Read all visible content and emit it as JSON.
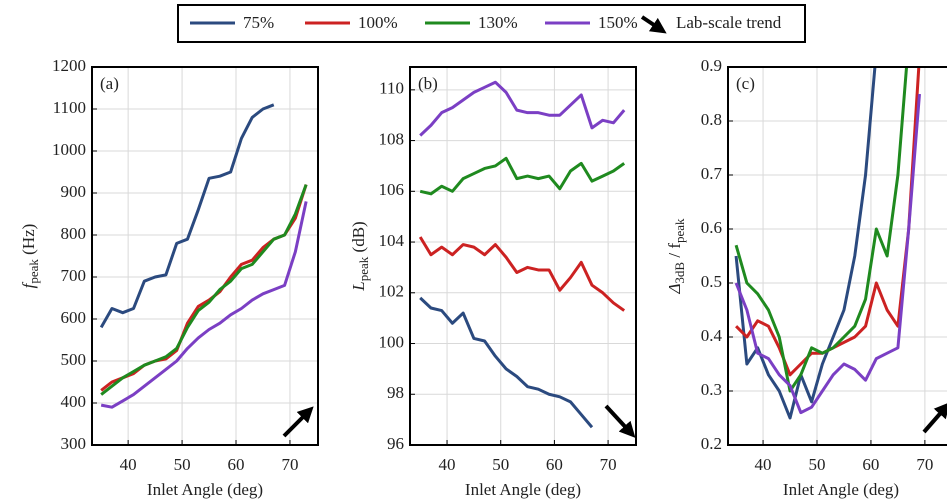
{
  "chart_data": [
    {
      "type": "line",
      "panel": "(a)",
      "xlabel": "Inlet Angle (deg)",
      "ylabel": [
        {
          "text": "f"
        },
        {
          "text": "peak",
          "sub": true
        },
        {
          "text": " (Hz)"
        }
      ],
      "legend_extra": "Lab-scale trend",
      "x": [
        35,
        37,
        39,
        41,
        43,
        45,
        47,
        49,
        51,
        53,
        55,
        57,
        59,
        61,
        63,
        65,
        67,
        69,
        71,
        73
      ],
      "xlim": [
        33.3,
        75.2
      ],
      "xticks": [
        40,
        50,
        60,
        70
      ],
      "ylim": [
        300,
        1200
      ],
      "yticks": [
        300,
        400,
        500,
        600,
        700,
        800,
        900,
        1000,
        1100,
        1200
      ],
      "grid": true,
      "series": [
        {
          "name": "75%",
          "color": "#2b4a7f",
          "values": [
            580,
            625,
            615,
            625,
            690,
            700,
            705,
            780,
            790,
            860,
            935,
            940,
            950,
            1030,
            1080,
            1100,
            1110,
            null,
            null,
            null
          ]
        },
        {
          "name": "100%",
          "color": "#cc2222",
          "values": [
            430,
            450,
            460,
            470,
            490,
            500,
            505,
            525,
            590,
            630,
            645,
            665,
            700,
            730,
            740,
            770,
            790,
            800,
            840,
            920
          ]
        },
        {
          "name": "130%",
          "color": "#1f8a1f",
          "values": [
            420,
            440,
            460,
            475,
            490,
            500,
            510,
            530,
            580,
            620,
            640,
            670,
            690,
            720,
            730,
            760,
            790,
            800,
            850,
            920
          ]
        },
        {
          "name": "150%",
          "color": "#7b3fc4",
          "values": [
            395,
            390,
            405,
            420,
            440,
            460,
            480,
            500,
            530,
            555,
            575,
            590,
            610,
            625,
            645,
            660,
            670,
            680,
            760,
            880
          ]
        }
      ]
    },
    {
      "type": "line",
      "panel": "(b)",
      "xlabel": "Inlet Angle (deg)",
      "ylabel": [
        {
          "text": "L"
        },
        {
          "text": "peak",
          "sub": true
        },
        {
          "text": " (dB)"
        }
      ],
      "x": [
        35,
        37,
        39,
        41,
        43,
        45,
        47,
        49,
        51,
        53,
        55,
        57,
        59,
        61,
        63,
        65,
        67,
        69,
        71,
        73
      ],
      "xlim": [
        33.1,
        75.2
      ],
      "xticks": [
        40,
        50,
        60,
        70
      ],
      "ylim": [
        96,
        110.9
      ],
      "yticks": [
        96,
        98,
        100,
        102,
        104,
        106,
        108,
        110
      ],
      "grid": true,
      "series": [
        {
          "name": "75%",
          "color": "#2b4a7f",
          "values": [
            101.8,
            101.4,
            101.3,
            100.8,
            101.2,
            100.2,
            100.1,
            99.5,
            99.0,
            98.7,
            98.3,
            98.2,
            98.0,
            97.9,
            97.7,
            97.2,
            96.7,
            null,
            null,
            null
          ]
        },
        {
          "name": "100%",
          "color": "#cc2222",
          "values": [
            104.2,
            103.5,
            103.8,
            103.5,
            103.9,
            103.8,
            103.5,
            103.9,
            103.4,
            102.8,
            103.0,
            102.9,
            102.9,
            102.1,
            102.6,
            103.2,
            102.3,
            102.0,
            101.6,
            101.3
          ]
        },
        {
          "name": "130%",
          "color": "#1f8a1f",
          "values": [
            106.0,
            105.9,
            106.2,
            106.0,
            106.5,
            106.7,
            106.9,
            107.0,
            107.3,
            106.5,
            106.6,
            106.5,
            106.6,
            106.1,
            106.8,
            107.1,
            106.4,
            106.6,
            106.8,
            107.1
          ]
        },
        {
          "name": "150%",
          "color": "#7b3fc4",
          "values": [
            108.2,
            108.6,
            109.1,
            109.3,
            109.6,
            109.9,
            110.1,
            110.3,
            109.9,
            109.2,
            109.1,
            109.1,
            109.0,
            109.0,
            109.4,
            109.8,
            108.5,
            108.8,
            108.7,
            109.2
          ]
        }
      ]
    },
    {
      "type": "line",
      "panel": "(c)",
      "xlabel": "Inlet Angle (deg)",
      "ylabel": [
        {
          "text": "Δ"
        },
        {
          "text": "3dB",
          "sub": true
        },
        {
          "text": " / f"
        },
        {
          "text": "peak",
          "sub": true
        }
      ],
      "x": [
        35,
        37,
        39,
        41,
        43,
        45,
        47,
        49,
        51,
        53,
        55,
        57,
        59,
        61,
        63,
        65,
        67,
        69,
        71,
        73
      ],
      "xlim": [
        33.5,
        75.4
      ],
      "xticks": [
        40,
        50,
        60,
        70
      ],
      "ylim": [
        0.2,
        0.9
      ],
      "yticks": [
        0.2,
        0.3,
        0.4,
        0.5,
        0.6,
        0.7,
        0.8,
        0.9
      ],
      "grid": true,
      "series": [
        {
          "name": "75%",
          "color": "#2b4a7f",
          "values": [
            0.55,
            0.35,
            0.38,
            0.33,
            0.3,
            0.25,
            0.33,
            0.28,
            0.35,
            0.4,
            0.45,
            0.55,
            0.7,
            0.93,
            null,
            null,
            null,
            null,
            null,
            null
          ]
        },
        {
          "name": "100%",
          "color": "#cc2222",
          "values": [
            0.42,
            0.4,
            0.43,
            0.42,
            0.38,
            0.33,
            0.35,
            0.37,
            0.37,
            0.38,
            0.39,
            0.4,
            0.42,
            0.5,
            0.45,
            0.42,
            0.6,
            0.92,
            null,
            null
          ]
        },
        {
          "name": "130%",
          "color": "#1f8a1f",
          "values": [
            0.57,
            0.5,
            0.48,
            0.45,
            0.4,
            0.3,
            0.33,
            0.38,
            0.37,
            0.38,
            0.4,
            0.42,
            0.47,
            0.6,
            0.55,
            0.7,
            0.95,
            null,
            null,
            null
          ]
        },
        {
          "name": "150%",
          "color": "#7b3fc4",
          "values": [
            0.5,
            0.45,
            0.37,
            0.36,
            0.33,
            0.31,
            0.26,
            0.27,
            0.3,
            0.33,
            0.35,
            0.34,
            0.32,
            0.36,
            0.37,
            0.38,
            0.6,
            0.85,
            null,
            null
          ]
        }
      ]
    }
  ]
}
